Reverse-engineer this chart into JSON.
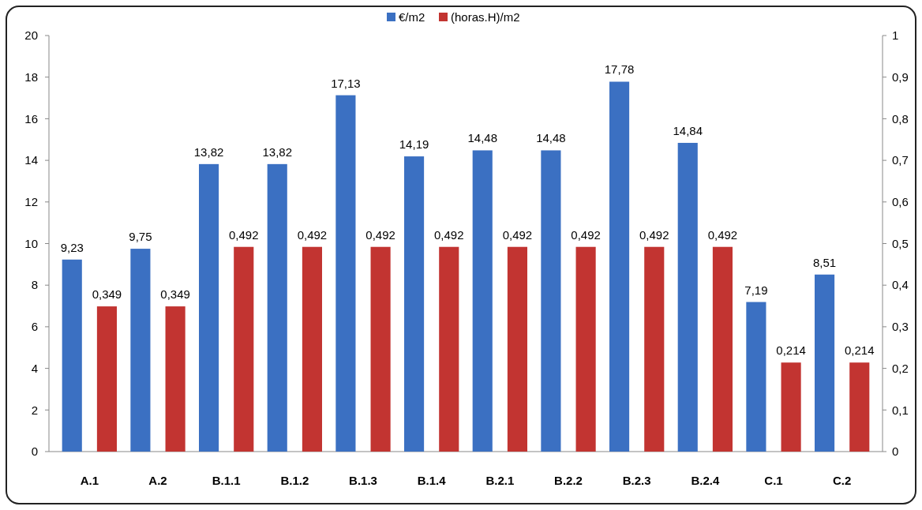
{
  "chart_data": {
    "type": "bar",
    "categories": [
      "A.1",
      "A.2",
      "B.1.1",
      "B.1.2",
      "B.1.3",
      "B.1.4",
      "B.2.1",
      "B.2.2",
      "B.2.3",
      "B.2.4",
      "C.1",
      "C.2"
    ],
    "series": [
      {
        "name": "€/m2",
        "color": "#3b70c2",
        "values": [
          9.23,
          9.75,
          13.82,
          13.82,
          17.13,
          14.19,
          14.48,
          14.48,
          17.78,
          14.84,
          7.19,
          8.51
        ],
        "value_labels": [
          "9,23",
          "9,75",
          "13,82",
          "13,82",
          "17,13",
          "14,19",
          "14,48",
          "14,48",
          "17,78",
          "14,84",
          "7,19",
          "8,51"
        ]
      },
      {
        "name": "(horas.H)/m2",
        "color": "#c23431",
        "axis": "y2",
        "values": [
          0.349,
          0.349,
          0.492,
          0.492,
          0.492,
          0.492,
          0.492,
          0.492,
          0.492,
          0.492,
          0.214,
          0.214
        ],
        "value_labels": [
          "0,349",
          "0,349",
          "0,492",
          "0,492",
          "0,492",
          "0,492",
          "0,492",
          "0,492",
          "0,492",
          "0,492",
          "0,214",
          "0,214"
        ]
      }
    ],
    "ylim": [
      0,
      20
    ],
    "yticks": [
      0,
      2,
      4,
      6,
      8,
      10,
      12,
      14,
      16,
      18,
      20
    ],
    "y2lim": [
      0,
      1
    ],
    "y2ticks": [
      0,
      {
        "value": 0.1,
        "label": "0,1"
      },
      {
        "value": 0.2,
        "label": "0,2"
      },
      {
        "value": 0.3,
        "label": "0,3"
      },
      {
        "value": 0.4,
        "label": "0,4"
      },
      {
        "value": 0.5,
        "label": "0,5"
      },
      {
        "value": 0.6,
        "label": "0,6"
      },
      {
        "value": 0.7,
        "label": "0,7"
      },
      {
        "value": 0.8,
        "label": "0,8"
      },
      {
        "value": 0.9,
        "label": "0,9"
      },
      1
    ],
    "legend": "top",
    "grid": false
  }
}
